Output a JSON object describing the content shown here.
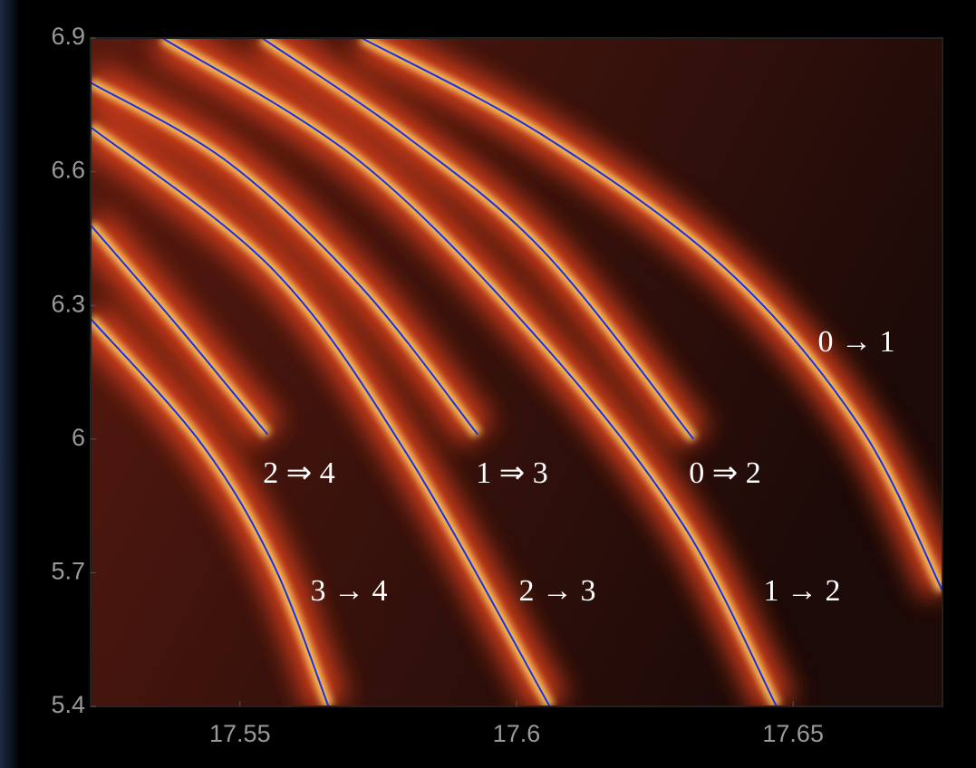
{
  "chart_data": {
    "type": "line",
    "xlim": [
      17.523,
      17.677
    ],
    "ylim": [
      5.4,
      6.9
    ],
    "xticks": [
      17.55,
      17.6,
      17.65
    ],
    "yticks": [
      5.4,
      5.7,
      6,
      6.3,
      6.6,
      6.9
    ],
    "series": [
      {
        "name": "0 → 1",
        "color": "#1a2ee6",
        "x": [
          17.572,
          17.605,
          17.638,
          17.662,
          17.677
        ],
        "values": [
          6.9,
          6.68,
          6.38,
          6.03,
          5.66
        ]
      },
      {
        "name": "0 ⇒ 2",
        "color": "#1a2ee6",
        "x": [
          17.554,
          17.58,
          17.605,
          17.632
        ],
        "values": [
          6.9,
          6.68,
          6.42,
          6.0
        ]
      },
      {
        "name": "1 → 2",
        "color": "#1a2ee6",
        "x": [
          17.536,
          17.572,
          17.605,
          17.63,
          17.647
        ],
        "values": [
          6.9,
          6.62,
          6.21,
          5.81,
          5.4
        ]
      },
      {
        "name": "1 ⇒ 3",
        "color": "#1a2ee6",
        "x": [
          17.523,
          17.548,
          17.572,
          17.593
        ],
        "values": [
          6.8,
          6.62,
          6.34,
          6.01
        ]
      },
      {
        "name": "2 → 3",
        "color": "#1a2ee6",
        "x": [
          17.523,
          17.556,
          17.58,
          17.606
        ],
        "values": [
          6.7,
          6.38,
          5.97,
          5.4
        ]
      },
      {
        "name": "2 ⇒ 4",
        "color": "#1a2ee6",
        "x": [
          17.523,
          17.539,
          17.555
        ],
        "values": [
          6.48,
          6.25,
          6.01
        ]
      },
      {
        "name": "3 → 4",
        "color": "#1a2ee6",
        "x": [
          17.523,
          17.543,
          17.556,
          17.566
        ],
        "values": [
          6.27,
          5.99,
          5.72,
          5.4
        ]
      }
    ]
  }
}
